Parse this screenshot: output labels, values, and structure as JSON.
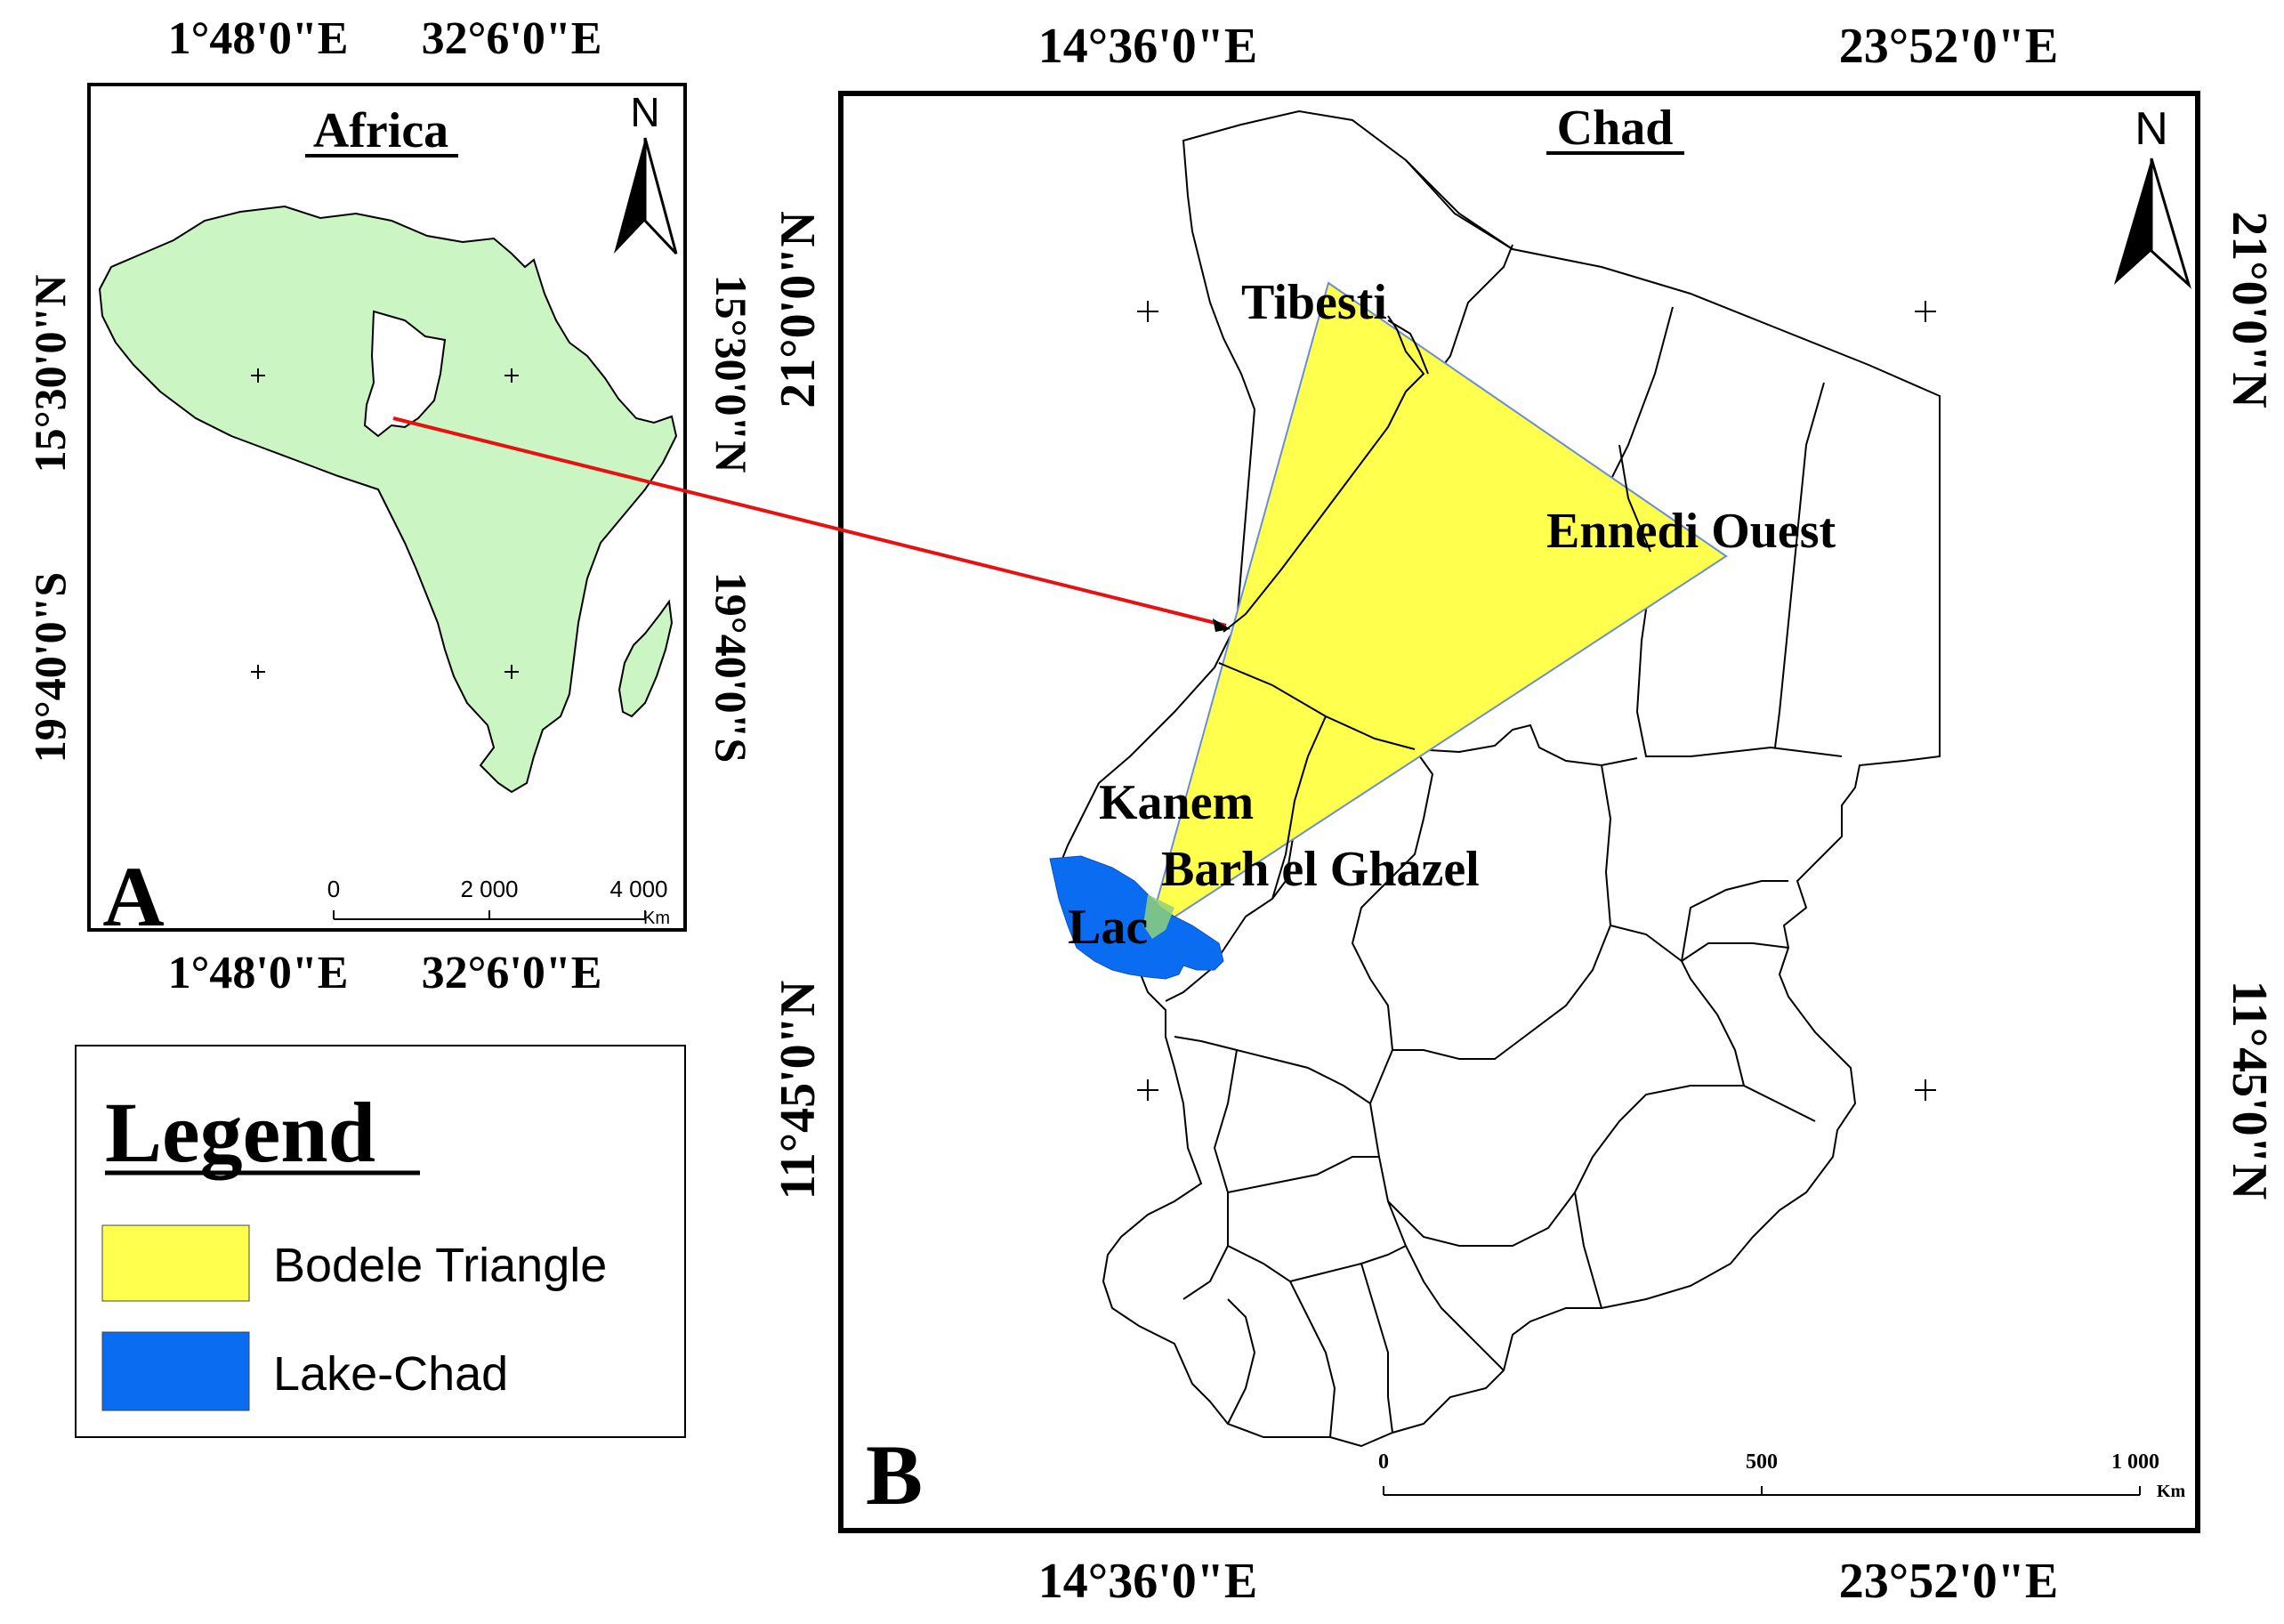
{
  "panel_a": {
    "panel_letter": "A",
    "title": "Africa",
    "north": "N",
    "top_lon_1": "1°48'0\"E",
    "top_lon_2": "32°6'0\"E",
    "bottom_lon_1": "1°48'0\"E",
    "bottom_lon_2": "32°6'0\"E",
    "left_lat_1": "15°30'0\"N",
    "left_lat_2": "19°40'0\"S",
    "right_lat_1": "15°30'0\"N",
    "right_lat_2": "19°40'0\"S",
    "scale_0": "0",
    "scale_1": "2 000",
    "scale_2": "4 000",
    "scale_unit": "Km"
  },
  "panel_b": {
    "panel_letter": "B",
    "title": "Chad",
    "north": "N",
    "top_lon_1": "14°36'0\"E",
    "top_lon_2": "23°52'0\"E",
    "bottom_lon_1": "14°36'0\"E",
    "bottom_lon_2": "23°52'0\"E",
    "left_lat_1": "21°0'0\"N",
    "left_lat_2": "11°45'0\"N",
    "right_lat_1": "21°0'0\"N",
    "right_lat_2": "11°45'0\"N",
    "labels": {
      "tibesti": "Tibesti",
      "ennedi": "Ennedi Ouest",
      "kanem": "Kanem",
      "barh": "Barh el Ghazel",
      "lac": "Lac"
    },
    "scale_0": "0",
    "scale_1": "500",
    "scale_2": "1 000",
    "scale_unit": "Km"
  },
  "legend": {
    "title": "Legend",
    "items": [
      {
        "label": "Bodele Triangle",
        "color": "#ffff4d"
      },
      {
        "label": "Lake-Chad",
        "color": "#0a6cf0"
      }
    ]
  },
  "colors": {
    "africa_fill": "#ccf5c4",
    "arrow": "#e81010",
    "triangle": "#ffff4d",
    "lake": "#0a6cf0",
    "chad_fill": "#ffffff"
  }
}
